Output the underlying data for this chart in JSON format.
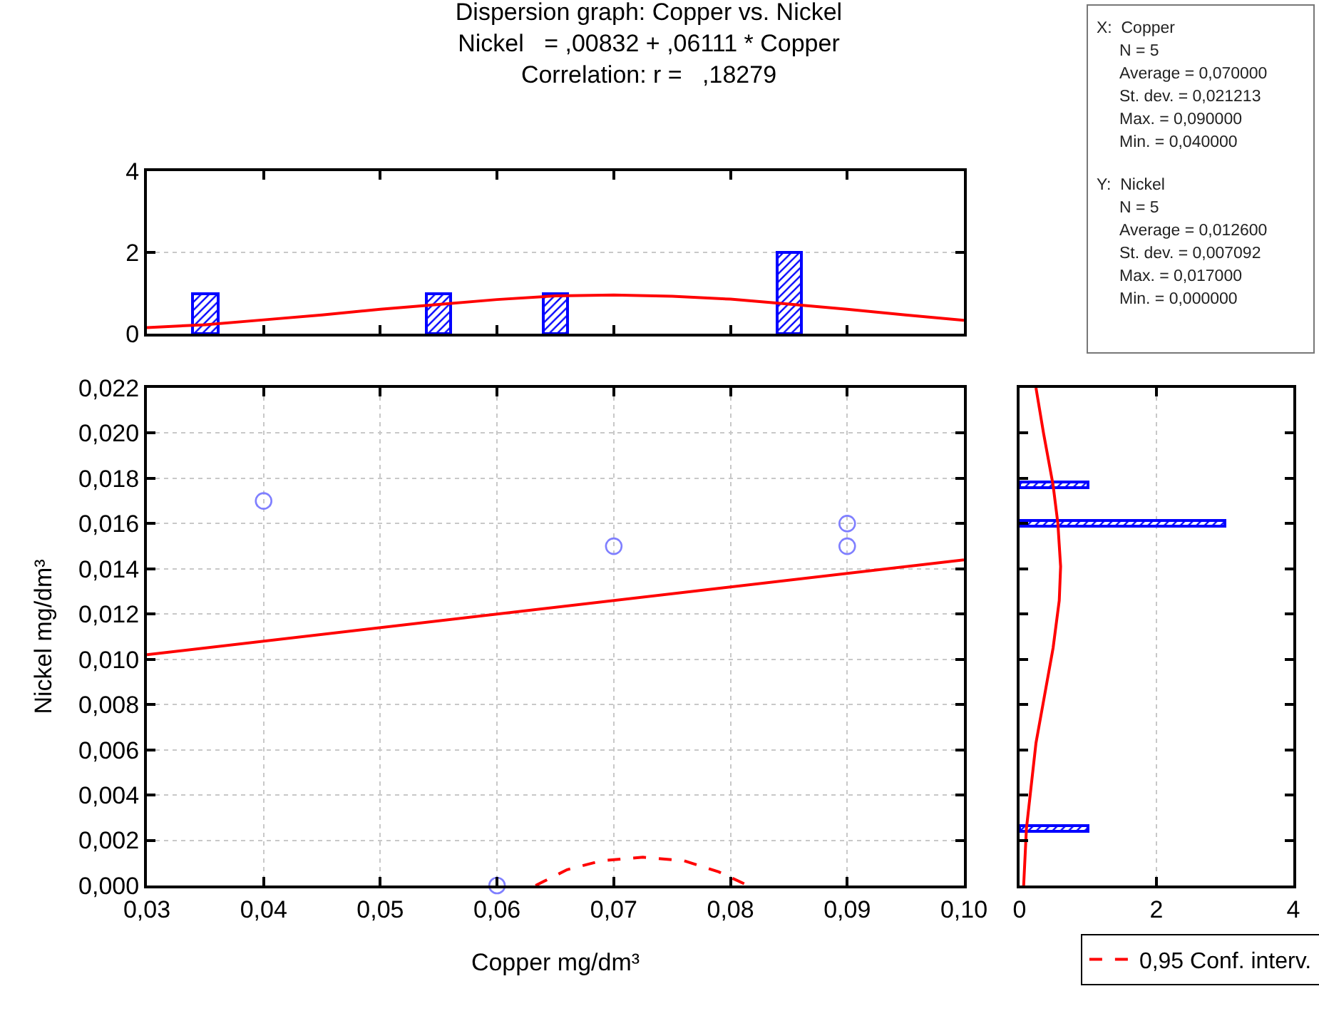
{
  "chart_data": [
    {
      "type": "bar",
      "title": "Dispersion graph: Copper vs. Nickel",
      "subtitle": "Nickel   = ,00832 + ,06111 * Copper\nCorrelation: r =   ,18279",
      "series": [
        {
          "type": "bar",
          "color": "#0000ff",
          "x": [
            0.035,
            0.055,
            0.065,
            0.085
          ],
          "values": [
            1,
            1,
            1,
            2
          ]
        },
        {
          "type": "line",
          "color": "#ff0000",
          "x": [
            0.03,
            0.035,
            0.04,
            0.045,
            0.05,
            0.055,
            0.06,
            0.065,
            0.07,
            0.075,
            0.08,
            0.085,
            0.09,
            0.095,
            0.1
          ],
          "values": [
            0.15,
            0.22,
            0.34,
            0.46,
            0.6,
            0.72,
            0.84,
            0.93,
            0.95,
            0.92,
            0.85,
            0.73,
            0.6,
            0.46,
            0.33
          ]
        }
      ],
      "xlim": [
        0.03,
        0.1
      ],
      "xticks": [
        {
          "value": 0.03,
          "label": null
        },
        {
          "value": 0.04,
          "label": null
        },
        {
          "value": 0.05,
          "label": null
        },
        {
          "value": 0.06,
          "label": null
        },
        {
          "value": 0.07,
          "label": null
        },
        {
          "value": 0.08,
          "label": null
        },
        {
          "value": 0.09,
          "label": null
        },
        {
          "value": 0.1,
          "label": null
        }
      ],
      "ylim": [
        0,
        4
      ],
      "yticks": [
        0,
        2,
        4
      ],
      "tick_labels": "y",
      "grid": "y"
    },
    {
      "type": "scatter",
      "xlabel": "Copper mg/dm³",
      "ylabel": "Nickel mg/dm³",
      "series": [
        {
          "type": "scatter",
          "marker": "circle",
          "color": "#7f7fff",
          "x": [
            0.04,
            0.06,
            0.07,
            0.09,
            0.09
          ],
          "values": [
            0.017,
            0.0,
            0.015,
            0.016,
            0.015
          ]
        },
        {
          "type": "line",
          "color": "#ff0000",
          "x": [
            0.03,
            0.1
          ],
          "values": [
            0.0102,
            0.0144
          ]
        },
        {
          "type": "line",
          "name": "0,95 Conf. interv.",
          "color": "#ff0000",
          "line_style": "dashed",
          "x": [
            0.0633,
            0.066,
            0.069,
            0.0725,
            0.076,
            0.079,
            0.0815
          ],
          "values": [
            0.0,
            0.0007,
            0.0011,
            0.00125,
            0.0011,
            0.0006,
            0.0
          ]
        }
      ],
      "xlim": [
        0.03,
        0.1
      ],
      "xticks": [
        {
          "value": 0.03,
          "label": "0,03"
        },
        {
          "value": 0.04,
          "label": "0,04"
        },
        {
          "value": 0.05,
          "label": "0,05"
        },
        {
          "value": 0.06,
          "label": "0,06"
        },
        {
          "value": 0.07,
          "label": "0,07"
        },
        {
          "value": 0.08,
          "label": "0,08"
        },
        {
          "value": 0.09,
          "label": "0,09"
        },
        {
          "value": 0.1,
          "label": "0,10"
        }
      ],
      "ylim": [
        0,
        0.022
      ],
      "yticks": [
        {
          "value": 0,
          "label": "0,000"
        },
        {
          "value": 0.002,
          "label": "0,002"
        },
        {
          "value": 0.004,
          "label": "0,004"
        },
        {
          "value": 0.006,
          "label": "0,006"
        },
        {
          "value": 0.008,
          "label": "0,008"
        },
        {
          "value": 0.01,
          "label": "0,010"
        },
        {
          "value": 0.012,
          "label": "0,012"
        },
        {
          "value": 0.014,
          "label": "0,014"
        },
        {
          "value": 0.016,
          "label": "0,016"
        },
        {
          "value": 0.018,
          "label": "0,018"
        },
        {
          "value": 0.02,
          "label": "0,020"
        },
        {
          "value": 0.022,
          "label": "0,022"
        }
      ],
      "grid": true,
      "legend": "bottom right"
    },
    {
      "type": "bar",
      "orientation": "horizontal",
      "series": [
        {
          "type": "bar",
          "color": "#0000ff",
          "x": [
            0.0025,
            0.016,
            0.0177
          ],
          "values": [
            1,
            3,
            1
          ]
        },
        {
          "type": "line",
          "color": "#ff0000",
          "x": [
            0,
            0.0025,
            0.0063,
            0.0105,
            0.0126,
            0.0141,
            0.016,
            0.0177,
            0.02,
            0.022
          ],
          "values": [
            0.06,
            0.1,
            0.24,
            0.49,
            0.58,
            0.6,
            0.56,
            0.49,
            0.35,
            0.24
          ]
        }
      ],
      "xlim": [
        0,
        4
      ],
      "xticks": [
        0,
        2,
        4
      ],
      "ylim": [
        0,
        0.022
      ],
      "yticks": [
        {
          "value": 0,
          "label": null
        },
        {
          "value": 0.002,
          "label": null
        },
        {
          "value": 0.004,
          "label": null
        },
        {
          "value": 0.006,
          "label": null
        },
        {
          "value": 0.008,
          "label": null
        },
        {
          "value": 0.01,
          "label": null
        },
        {
          "value": 0.012,
          "label": null
        },
        {
          "value": 0.014,
          "label": null
        },
        {
          "value": 0.016,
          "label": null
        },
        {
          "value": 0.018,
          "label": null
        },
        {
          "value": 0.02,
          "label": null
        },
        {
          "value": 0.022,
          "label": null
        }
      ],
      "tick_labels": "x",
      "grid": "x"
    },
    {
      "type": "other",
      "annotations": [
        "X:  Copper\nN = 5\nAverage = 0,070000\nSt. dev. = 0,021213\nMax. = 0,090000\nMin. = 0,040000",
        "Y:  Nickel\nN = 5\nAverage = 0,012600\nSt. dev. = 0,007092\nMax. = 0,017000\nMin. = 0,000000"
      ]
    }
  ]
}
